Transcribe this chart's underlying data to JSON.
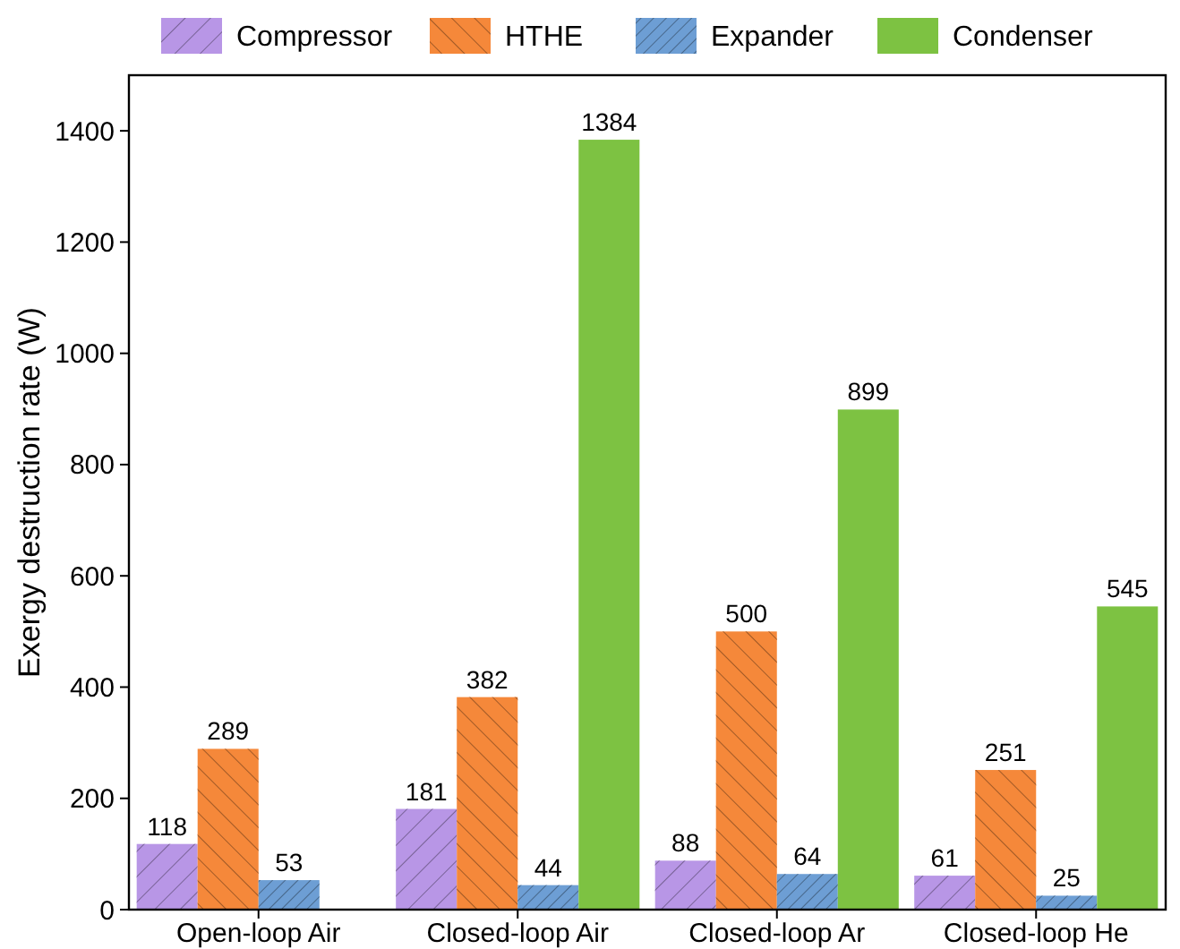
{
  "chart_data": {
    "type": "bar",
    "ylabel": "Exergy destruction rate (W)",
    "categories": [
      "Open-loop Air",
      "Closed-loop Air",
      "Closed-loop Ar",
      "Closed-loop He"
    ],
    "series": [
      {
        "name": "Compressor",
        "color": "#b896e6",
        "values": [
          118,
          181,
          88,
          61
        ]
      },
      {
        "name": "HTHE",
        "color": "#f5883a",
        "values": [
          289,
          382,
          500,
          251
        ]
      },
      {
        "name": "Expander",
        "color": "#6d9ed4",
        "values": [
          53,
          44,
          64,
          25
        ]
      },
      {
        "name": "Condenser",
        "color": "#7dc242",
        "values": [
          null,
          1384,
          899,
          545
        ]
      }
    ],
    "ylim": [
      0,
      1500
    ],
    "yticks": [
      0,
      200,
      400,
      600,
      800,
      1000,
      1200,
      1400
    ],
    "data_labels": true,
    "legend": "top",
    "grid": false
  }
}
